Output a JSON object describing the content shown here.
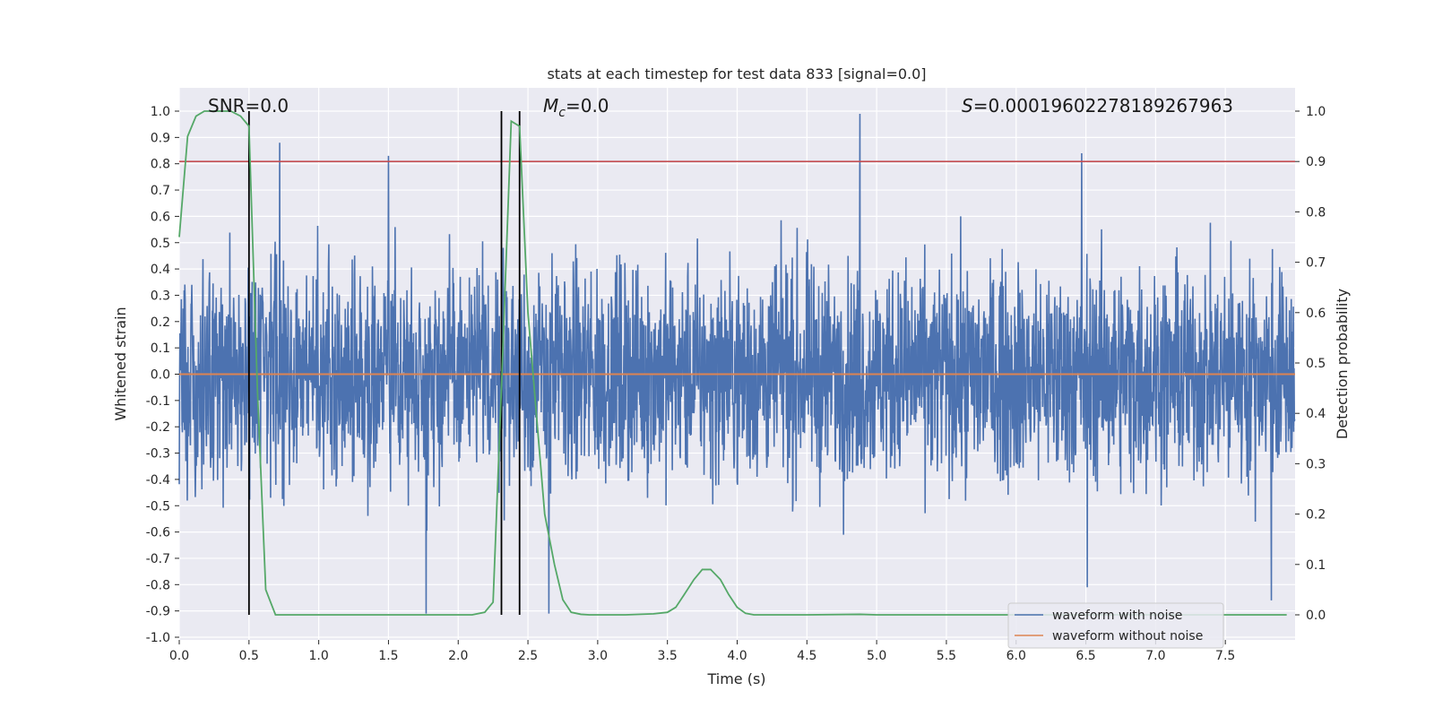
{
  "chart_data": {
    "type": "line",
    "title": "stats at each timestep for test data 833 [signal=0.0]",
    "xlabel": "Time (s)",
    "ylabel_left": "Whitened strain",
    "ylabel_right": "Detection probability",
    "xlim": [
      0.0,
      8.0
    ],
    "ylim_left": [
      -1.0,
      1.0
    ],
    "ylim_right": [
      -0.05,
      1.05
    ],
    "xticks": [
      "0.0",
      "0.5",
      "1.0",
      "1.5",
      "2.0",
      "2.5",
      "3.0",
      "3.5",
      "4.0",
      "4.5",
      "5.0",
      "5.5",
      "6.0",
      "6.5",
      "7.0",
      "7.5"
    ],
    "yticks_left": [
      "-1.0",
      "-0.9",
      "-0.8",
      "-0.7",
      "-0.6",
      "-0.5",
      "-0.4",
      "-0.3",
      "-0.2",
      "-0.1",
      "0.0",
      "0.1",
      "0.2",
      "0.3",
      "0.4",
      "0.5",
      "0.6",
      "0.7",
      "0.8",
      "0.9",
      "1.0"
    ],
    "yticks_right": [
      "0.0",
      "0.1",
      "0.2",
      "0.3",
      "0.4",
      "0.5",
      "0.6",
      "0.7",
      "0.8",
      "0.9",
      "1.0"
    ],
    "grid": true,
    "legend_position": "lower-right",
    "annotations": {
      "snr_label": "SNR=0.0",
      "mc_symbol": "M",
      "mc_subscript": "c",
      "mc_value": "=0.0",
      "s_symbol": "S",
      "s_value": "=0.00019602278189267963"
    },
    "threshold": {
      "axis": "right",
      "value": 0.9,
      "color": "#c44e52"
    },
    "vertical_lines": {
      "x": [
        0.5,
        2.31,
        2.44
      ],
      "color": "#000000"
    },
    "series": [
      {
        "name": "waveform with noise",
        "axis": "left",
        "color": "#4c72b0",
        "render": "noise-band",
        "amplitude_envelope": {
          "typical": 0.35,
          "max_peak": 0.99,
          "min_peak": -0.91
        }
      },
      {
        "name": "waveform without noise",
        "axis": "left",
        "color": "#dd8452",
        "x": [
          0.0,
          8.0
        ],
        "y": [
          0.0,
          0.0
        ]
      },
      {
        "axis": "right",
        "color": "#55a868",
        "x": [
          0.0,
          0.06,
          0.12,
          0.18,
          0.25,
          0.31,
          0.37,
          0.44,
          0.5,
          0.56,
          0.62,
          0.69,
          0.75,
          1.0,
          1.5,
          2.0,
          2.1,
          2.19,
          2.25,
          2.31,
          2.38,
          2.44,
          2.5,
          2.56,
          2.62,
          2.69,
          2.75,
          2.81,
          2.88,
          2.94,
          3.0,
          3.2,
          3.4,
          3.5,
          3.56,
          3.62,
          3.69,
          3.75,
          3.81,
          3.88,
          3.94,
          4.0,
          4.06,
          4.12,
          4.5,
          4.88,
          5.0,
          6.0,
          7.0,
          7.94
        ],
        "y": [
          0.75,
          0.95,
          0.99,
          1.0,
          1.0,
          1.0,
          1.0,
          0.99,
          0.97,
          0.45,
          0.05,
          0.0,
          0.0,
          0.0,
          0.0,
          0.0,
          0.0,
          0.005,
          0.025,
          0.45,
          0.98,
          0.97,
          0.6,
          0.4,
          0.2,
          0.1,
          0.03,
          0.005,
          0.001,
          0.0,
          0.0,
          0.0,
          0.002,
          0.005,
          0.015,
          0.04,
          0.07,
          0.09,
          0.09,
          0.07,
          0.04,
          0.015,
          0.003,
          0.0,
          0.0,
          0.001,
          0.0,
          0.0,
          0.0,
          0.0
        ]
      }
    ]
  }
}
